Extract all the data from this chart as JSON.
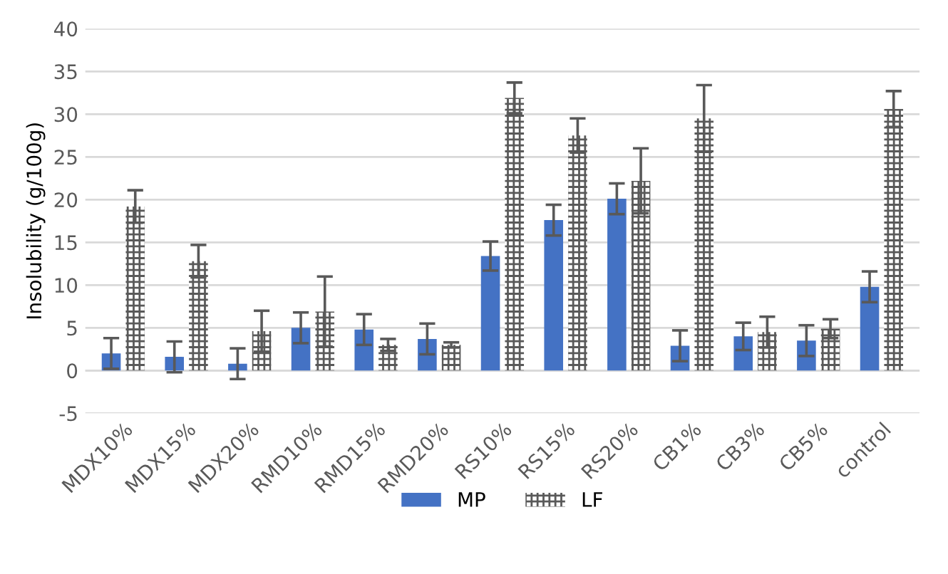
{
  "chart_data": {
    "type": "bar",
    "ylabel": "Insolubility (g/100g)",
    "categories": [
      "MDX10%",
      "MDX15%",
      "MDX20%",
      "RMD10%",
      "RMD15%",
      "RMD20%",
      "RS10%",
      "RS15%",
      "RS20%",
      "CB1%",
      "CB3%",
      "CB5%",
      "control"
    ],
    "series": [
      {
        "name": "MP",
        "color": "#4472c4",
        "values": [
          2.0,
          1.6,
          0.8,
          5.0,
          4.8,
          3.7,
          13.4,
          17.6,
          20.1,
          2.9,
          4.0,
          3.5,
          9.8
        ],
        "errors": [
          1.8,
          1.8,
          1.8,
          1.8,
          1.8,
          1.8,
          1.7,
          1.8,
          1.8,
          1.8,
          1.6,
          1.8,
          1.8
        ]
      },
      {
        "name": "LF",
        "color": "#595959",
        "values": [
          19.2,
          12.8,
          4.6,
          6.9,
          3.0,
          3.0,
          31.9,
          27.5,
          22.2,
          29.5,
          4.5,
          4.9,
          30.6
        ],
        "errors": [
          1.9,
          1.9,
          2.4,
          4.1,
          0.7,
          0.3,
          1.8,
          2.0,
          3.8,
          3.9,
          1.8,
          1.1,
          2.1
        ]
      }
    ],
    "ylim": [
      -5,
      40
    ],
    "yticks": [
      -5,
      0,
      5,
      10,
      15,
      20,
      25,
      30,
      35,
      40
    ],
    "grid": "y",
    "legend": "bottom"
  }
}
